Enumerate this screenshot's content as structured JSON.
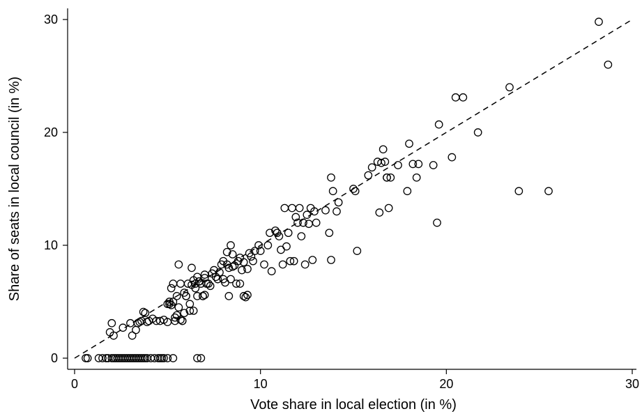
{
  "chart_data": {
    "type": "scatter",
    "title": "",
    "xlabel": "Vote share in local election (in %)",
    "ylabel": "Share of seats in local council (in %)",
    "xlim": [
      -1,
      30
    ],
    "ylim": [
      -0.5,
      31
    ],
    "xticks": [
      0,
      10,
      20,
      30
    ],
    "yticks": [
      0,
      10,
      20,
      30
    ],
    "xtick_labels": [
      "0",
      "10",
      "20",
      "30"
    ],
    "ytick_labels": [
      "0",
      "10",
      "20",
      "30"
    ],
    "grid": false,
    "marker": "hollow-circle",
    "reference_line": {
      "style": "dashed",
      "from": [
        0,
        0
      ],
      "to": [
        30,
        30
      ]
    },
    "x": [
      0.6,
      0.7,
      1.3,
      1.5,
      1.7,
      1.8,
      2.0,
      2.1,
      2.2,
      2.3,
      2.4,
      2.5,
      2.6,
      2.7,
      2.8,
      2.9,
      3.0,
      3.1,
      3.2,
      3.3,
      3.4,
      3.5,
      3.6,
      3.7,
      3.8,
      3.9,
      4.1,
      4.3,
      4.5,
      4.6,
      4.7,
      4.8,
      5.0,
      5.3,
      6.6,
      6.8,
      1.9,
      2.0,
      2.1,
      2.6,
      3.0,
      3.1,
      3.3,
      3.4,
      3.5,
      3.6,
      3.7,
      3.8,
      3.9,
      4.0,
      4.2,
      4.4,
      4.6,
      4.8,
      5.0,
      5.1,
      5.2,
      5.3,
      5.4,
      5.5,
      5.6,
      5.7,
      5.8,
      5.9,
      6.0,
      6.1,
      6.2,
      6.3,
      6.4,
      6.5,
      6.6,
      6.7,
      6.8,
      6.9,
      7.0,
      7.1,
      7.2,
      7.4,
      7.6,
      7.8,
      7.9,
      8.0,
      8.2,
      8.3,
      8.4,
      8.5,
      8.6,
      8.8,
      9.0,
      9.1,
      9.3,
      9.5,
      9.7,
      9.9,
      5.0,
      5.1,
      5.2,
      5.3,
      5.5,
      5.6,
      5.8,
      6.0,
      6.2,
      6.4,
      6.7,
      7.0,
      7.3,
      7.7,
      8.1,
      8.5,
      8.9,
      9.4,
      5.4,
      5.9,
      6.3,
      6.6,
      6.9,
      7.5,
      8.0,
      8.3,
      8.7,
      9.2,
      9.6,
      10.0,
      5.7,
      6.5,
      7.0,
      8.2,
      8.4,
      8.9,
      9.1,
      9.3,
      10.2,
      10.4,
      10.6,
      10.8,
      11.0,
      11.1,
      11.3,
      11.5,
      11.7,
      11.9,
      12.1,
      12.3,
      12.5,
      12.7,
      12.9,
      11.2,
      11.6,
      12.0,
      12.4,
      12.8,
      10.5,
      10.9,
      11.4,
      11.8,
      12.2,
      12.6,
      13.0,
      13.5,
      13.8,
      13.9,
      14.1,
      14.2,
      15.0,
      15.1,
      15.2,
      13.7,
      13.8,
      15.8,
      16.0,
      16.3,
      16.5,
      16.6,
      16.7,
      16.8,
      16.9,
      17.0,
      17.4,
      18.0,
      18.2,
      18.5,
      16.4,
      16.8,
      17.9,
      18.4,
      19.3,
      19.6,
      20.3,
      20.5,
      20.9,
      21.7,
      23.4,
      19.5,
      23.9,
      25.5,
      28.2,
      28.7
    ],
    "y": [
      0,
      0,
      0,
      0,
      0,
      0,
      0,
      0,
      0,
      0,
      0,
      0,
      0,
      0,
      0,
      0,
      0,
      0,
      0,
      0,
      0,
      0,
      0,
      0,
      0,
      0,
      0,
      0,
      0,
      0,
      0,
      0,
      0,
      0,
      0,
      0,
      2.3,
      3.1,
      2.0,
      2.7,
      3.1,
      2.0,
      2.5,
      3.1,
      3.2,
      3.3,
      4.1,
      4.0,
      3.2,
      3.3,
      3.5,
      3.3,
      3.3,
      3.4,
      4.8,
      5.0,
      4.7,
      6.6,
      3.3,
      5.5,
      8.3,
      6.6,
      3.3,
      4.0,
      5.5,
      6.6,
      4.2,
      6.5,
      6.9,
      6.6,
      7.2,
      6.8,
      6.6,
      5.5,
      7.4,
      6.6,
      6.6,
      7.5,
      7.2,
      7.6,
      8.3,
      7.0,
      8.3,
      8.0,
      10.0,
      8.1,
      8.2,
      8.6,
      7.8,
      8.5,
      7.9,
      9.0,
      9.5,
      10.0,
      3.2,
      4.8,
      6.2,
      5.0,
      3.8,
      4.5,
      3.3,
      5.5,
      4.8,
      4.2,
      6.8,
      7.1,
      6.4,
      7.0,
      6.7,
      9.2,
      8.9,
      9.3,
      3.6,
      5.8,
      8.0,
      5.5,
      5.5,
      7.8,
      8.6,
      5.5,
      6.6,
      5.4,
      8.6,
      9.5,
      3.4,
      6.2,
      5.6,
      9.4,
      7.0,
      6.6,
      5.5,
      5.6,
      8.3,
      10.0,
      7.7,
      11.3,
      10.8,
      9.6,
      13.3,
      11.1,
      13.3,
      12.5,
      13.3,
      12.0,
      12.7,
      13.3,
      13.0,
      8.3,
      8.6,
      12.0,
      8.3,
      8.7,
      11.1,
      11.1,
      9.9,
      8.6,
      10.8,
      11.9,
      12.0,
      13.1,
      8.7,
      14.8,
      13.0,
      13.8,
      15.0,
      14.8,
      9.5,
      11.1,
      16.0,
      16.2,
      16.9,
      17.4,
      17.3,
      18.5,
      17.4,
      16.0,
      13.3,
      16.0,
      17.1,
      19.0,
      17.2,
      17.2,
      12.9,
      16.0,
      14.8,
      16.0,
      17.1,
      20.7,
      17.8,
      23.1,
      23.1,
      20.0,
      24.0,
      12.0,
      14.8,
      14.8,
      29.8,
      26.0
    ]
  }
}
